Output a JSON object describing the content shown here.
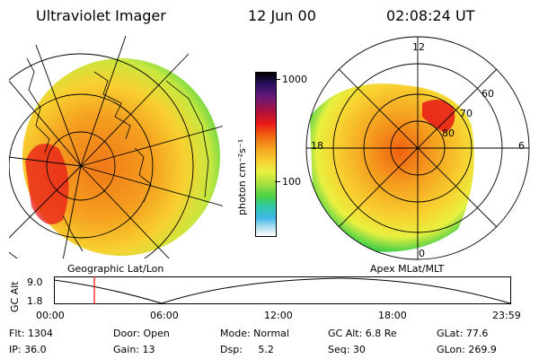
{
  "header": {
    "instrument": "Ultraviolet Imager",
    "date": "12 Jun 00",
    "time": "02:08:24 UT"
  },
  "left_panel": {
    "caption": "Geographic Lat/Lon"
  },
  "right_panel": {
    "caption": "Apex MLat/MLT",
    "mlt_labels": [
      "12",
      "18",
      "6",
      "0"
    ],
    "mlat_labels": [
      "60",
      "70",
      "80"
    ]
  },
  "colorbar": {
    "label": "photon cm⁻²s⁻¹",
    "tick_labels": [
      "1000",
      "100"
    ],
    "colors": [
      "#000000",
      "#2b1060",
      "#6a1a78",
      "#b0103a",
      "#e81818",
      "#f06010",
      "#f5a020",
      "#f8d030",
      "#e8f040",
      "#a8e040",
      "#48d048",
      "#30c8a8",
      "#40b8e8",
      "#b8e0f0",
      "#ffffff"
    ]
  },
  "altitude_plot": {
    "axis_label": "GC Alt",
    "y_ticks": [
      "9.0",
      "1.8"
    ],
    "x_ticks": [
      "00:00",
      "06:00",
      "12:00",
      "18:00",
      "23:59"
    ],
    "current_time_marker": "02:08",
    "marker_color": "#ff0000"
  },
  "footer": {
    "row1": [
      "Flt: 1304",
      "Door: Open",
      "Mode: Normal",
      "GC Alt: 6.8 Re",
      "GLat: 77.6"
    ],
    "row2": [
      "IP: 36.0",
      "Gain: 13",
      "Dsp:     5.2",
      "Seq: 30",
      "GLon: 269.9"
    ]
  }
}
